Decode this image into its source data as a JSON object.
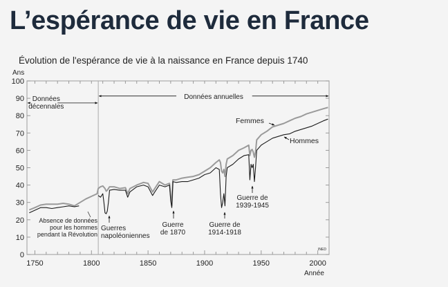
{
  "page": {
    "title": "L’espérance de vie en France"
  },
  "chart_data": {
    "type": "line",
    "title": "Évolution de l'espérance de vie à la naissance en France depuis 1740",
    "xlabel": "Année",
    "ylabel": "Ans",
    "xlim": [
      1743,
      2010
    ],
    "ylim": [
      0,
      100
    ],
    "xticks": [
      1750,
      1800,
      1850,
      1900,
      1950,
      2000
    ],
    "yticks": [
      0,
      10,
      20,
      30,
      40,
      50,
      60,
      70,
      80,
      90,
      100
    ],
    "grid": false,
    "series": [
      {
        "name": "Femmes",
        "color": "#9a9a9a",
        "x": [
          1745,
          1750,
          1755,
          1760,
          1770,
          1775,
          1780,
          1785,
          1790,
          1795,
          1800,
          1805,
          1806,
          1808,
          1810,
          1812,
          1813,
          1814,
          1816,
          1820,
          1825,
          1830,
          1832,
          1834,
          1840,
          1846,
          1850,
          1854,
          1856,
          1860,
          1865,
          1869,
          1870,
          1871,
          1872,
          1875,
          1880,
          1885,
          1890,
          1895,
          1900,
          1905,
          1910,
          1913,
          1914,
          1915,
          1916,
          1917,
          1918,
          1919,
          1920,
          1925,
          1930,
          1935,
          1939,
          1940,
          1941,
          1942,
          1943,
          1944,
          1945,
          1946,
          1950,
          1955,
          1960,
          1965,
          1970,
          1975,
          1980,
          1985,
          1990,
          1995,
          2000,
          2005,
          2009
        ],
        "y": [
          25.7,
          27,
          28.5,
          29,
          29,
          29.5,
          29,
          28,
          30,
          32,
          33.5,
          35,
          38,
          39,
          39.5,
          38,
          36.5,
          37,
          39,
          39,
          38,
          38.5,
          35,
          38,
          40,
          41.5,
          41,
          36,
          38,
          42,
          40,
          41,
          34,
          28,
          43,
          43,
          44,
          44.5,
          45,
          46,
          48,
          50,
          53,
          54.5,
          53,
          48,
          47,
          49,
          45,
          52,
          55,
          57,
          60,
          61.5,
          63,
          57,
          60,
          60.5,
          59,
          56,
          59,
          66,
          69,
          71,
          73.5,
          74.5,
          75.5,
          77,
          78.5,
          79.5,
          81,
          82,
          83,
          84,
          84.7
        ]
      },
      {
        "name": "Hommes",
        "color": "#1a1a1a",
        "x": [
          1745,
          1750,
          1755,
          1760,
          1765,
          1770,
          1775,
          1780,
          1785,
          1789,
          null,
          1806,
          1808,
          1810,
          1811,
          1812,
          1813,
          1814,
          1815,
          1816,
          1820,
          1825,
          1830,
          1832,
          1834,
          1840,
          1846,
          1850,
          1854,
          1856,
          1860,
          1865,
          1869,
          1870,
          1871,
          1872,
          1875,
          1880,
          1885,
          1890,
          1895,
          1900,
          1905,
          1910,
          1913,
          1914,
          1915,
          1916,
          1917,
          1918,
          1919,
          1920,
          1925,
          1930,
          1935,
          1939,
          1940,
          1941,
          1942,
          1943,
          1944,
          1945,
          1946,
          1950,
          1955,
          1960,
          1965,
          1970,
          1975,
          1980,
          1985,
          1990,
          1995,
          2000,
          2005,
          2009
        ],
        "y": [
          24,
          25.5,
          27,
          27,
          26.5,
          27,
          27.5,
          28,
          27.5,
          28,
          null,
          34,
          33,
          35,
          30,
          24,
          23.5,
          25,
          30,
          37,
          37.5,
          37,
          37,
          33,
          36,
          39,
          40,
          39,
          34,
          36,
          40,
          39,
          40,
          31,
          27,
          42,
          41.5,
          42,
          42,
          43,
          44,
          46,
          47,
          50,
          49,
          35,
          27,
          30,
          35,
          28,
          45,
          50,
          52,
          55,
          57,
          57.5,
          43,
          52,
          50,
          52,
          42,
          50,
          60,
          63,
          65,
          67,
          68,
          69,
          69.5,
          71,
          72,
          73,
          74,
          75.5,
          77,
          78
        ]
      }
    ],
    "annotations": {
      "decennial": [
        "Données",
        "décennales"
      ],
      "annual": "Données annuelles",
      "femmes_label": "Femmes",
      "hommes_label": "Hommes",
      "absence": [
        "Absence de données",
        "pour les hommes",
        "pendant la Révolution"
      ],
      "napoleon": [
        "Guerres",
        "napoléoniennes"
      ],
      "war1870": [
        "Guerre",
        "de 1870"
      ],
      "war1914": [
        "Guerre de",
        "1914-1918"
      ],
      "war1939": [
        "Guerre de",
        "1939-1945"
      ],
      "source": "INED"
    }
  }
}
